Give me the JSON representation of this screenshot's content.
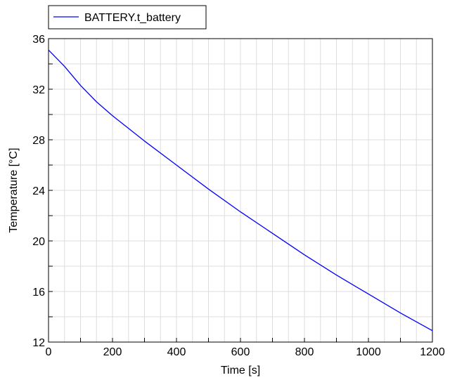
{
  "chart_data": {
    "type": "line",
    "title": "",
    "xlabel": "Time [s]",
    "ylabel": "Temperature [°C]",
    "xlim": [
      0,
      1200
    ],
    "ylim": [
      12,
      36
    ],
    "x_ticks": [
      "0",
      "200",
      "400",
      "600",
      "800",
      "1000",
      "1200"
    ],
    "y_ticks": [
      "12",
      "16",
      "20",
      "24",
      "28",
      "32",
      "36"
    ],
    "grid": true,
    "legend_position": "top-left",
    "series": [
      {
        "name": "BATTERY.t_battery",
        "color": "#0000ff",
        "x": [
          0,
          50,
          100,
          150,
          200,
          300,
          400,
          500,
          600,
          700,
          800,
          900,
          1000,
          1100,
          1200
        ],
        "y": [
          35.1,
          33.8,
          32.3,
          31.0,
          29.9,
          27.9,
          26.0,
          24.1,
          22.3,
          20.6,
          18.9,
          17.3,
          15.8,
          14.3,
          12.9
        ]
      }
    ]
  }
}
